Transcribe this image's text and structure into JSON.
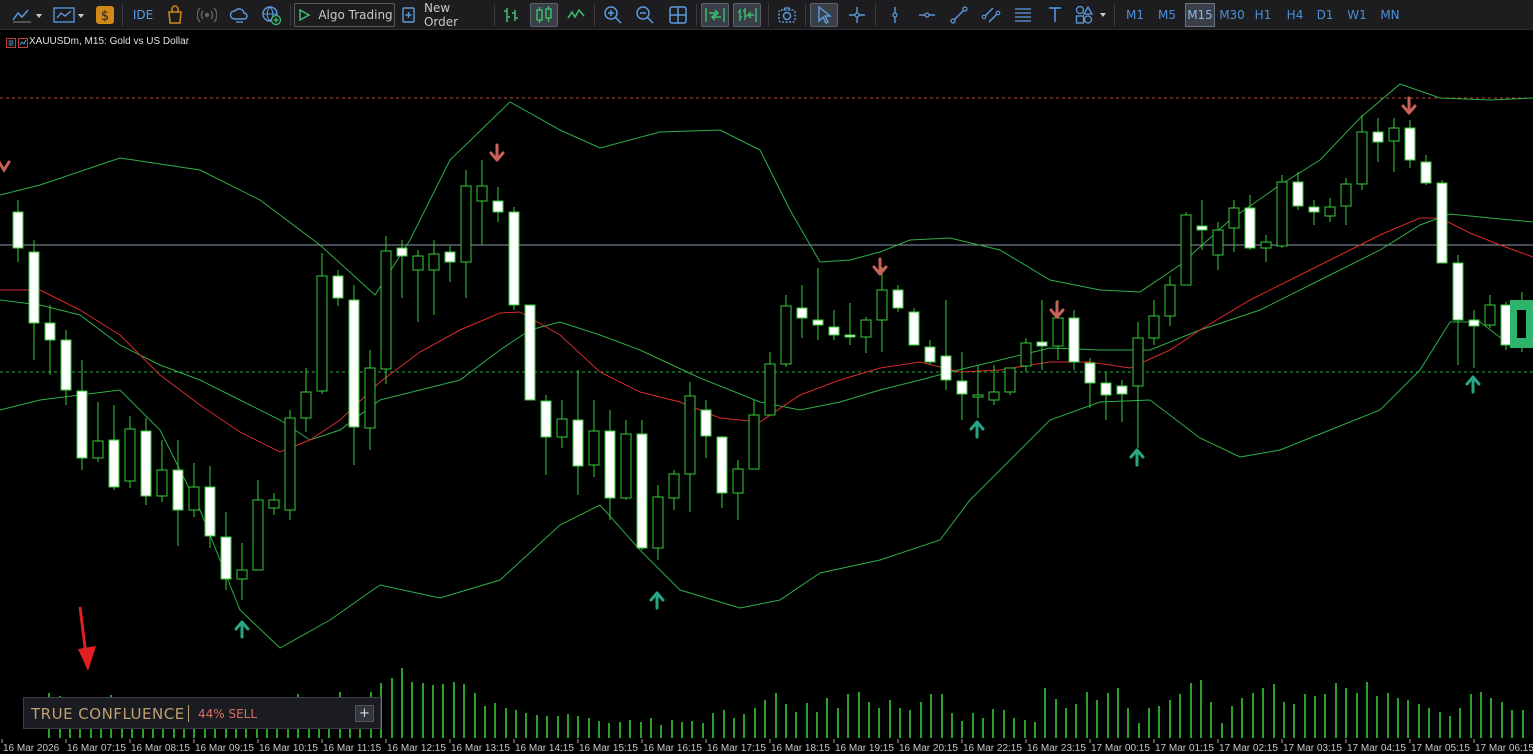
{
  "toolbar": {
    "ide_label": "IDE",
    "algo_trading_label": "Algo Trading",
    "new_order_label": "New Order",
    "timeframes": [
      "M1",
      "M5",
      "M15",
      "M30",
      "H1",
      "H4",
      "D1",
      "W1",
      "MN"
    ],
    "active_timeframe": "M15"
  },
  "chart": {
    "symbol": "XAUUSDm",
    "timeframe": "M15",
    "description": "Gold vs US Dollar",
    "title": "XAUUSDm, M15:  Gold vs US Dollar",
    "colors": {
      "background": "#000000",
      "bull_body": "#000000",
      "bear_body": "#ffffff",
      "wick": "#33cc33",
      "bollinger": "#2fae4a",
      "moving_average": "#d62b2b",
      "volume": "#33cc33",
      "arrow_up": "#26a682",
      "arrow_down": "#c8625a",
      "level_dashed_red": "#b0503a",
      "level_solid": "#8a9ab0",
      "level_dashed_green": "#2fae4a"
    },
    "x_labels": [
      "16 Mar 2026",
      "16 Mar 07:15",
      "16 Mar 08:15",
      "16 Mar 09:15",
      "16 Mar 10:15",
      "16 Mar 11:15",
      "16 Mar 12:15",
      "16 Mar 13:15",
      "16 Mar 14:15",
      "16 Mar 15:15",
      "16 Mar 16:15",
      "16 Mar 17:15",
      "16 Mar 18:15",
      "16 Mar 19:15",
      "16 Mar 20:15",
      "16 Mar 22:15",
      "16 Mar 23:15",
      "17 Mar 00:15",
      "17 Mar 01:15",
      "17 Mar 02:15",
      "17 Mar 03:15",
      "17 Mar 04:15",
      "17 Mar 05:15",
      "17 Mar 06:15"
    ]
  },
  "indicator_panel": {
    "name": "TRUE CONFLUENCE",
    "signal": "44% SELL",
    "expand_symbol": "+"
  }
}
